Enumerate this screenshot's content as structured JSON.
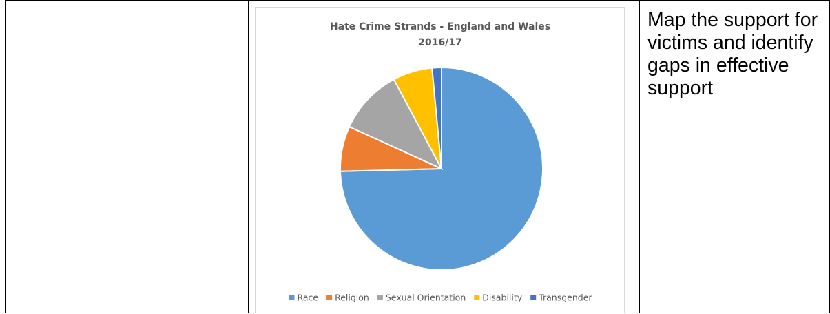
{
  "right_cell": {
    "text": "Map the support for victims and identify gaps in effective support"
  },
  "chart_data": {
    "type": "pie",
    "title": [
      "Hate Crime Strands - England and Wales",
      "2016/17"
    ],
    "legend_position": "bottom",
    "categories": [
      "Race",
      "Religion",
      "Sexual Orientation",
      "Disability",
      "Transgender"
    ],
    "values": [
      74.6,
      7.2,
      10.4,
      6.3,
      1.5
    ],
    "colors": [
      "#5b9bd5",
      "#ed7d31",
      "#a5a5a5",
      "#ffc000",
      "#4472c4"
    ]
  }
}
